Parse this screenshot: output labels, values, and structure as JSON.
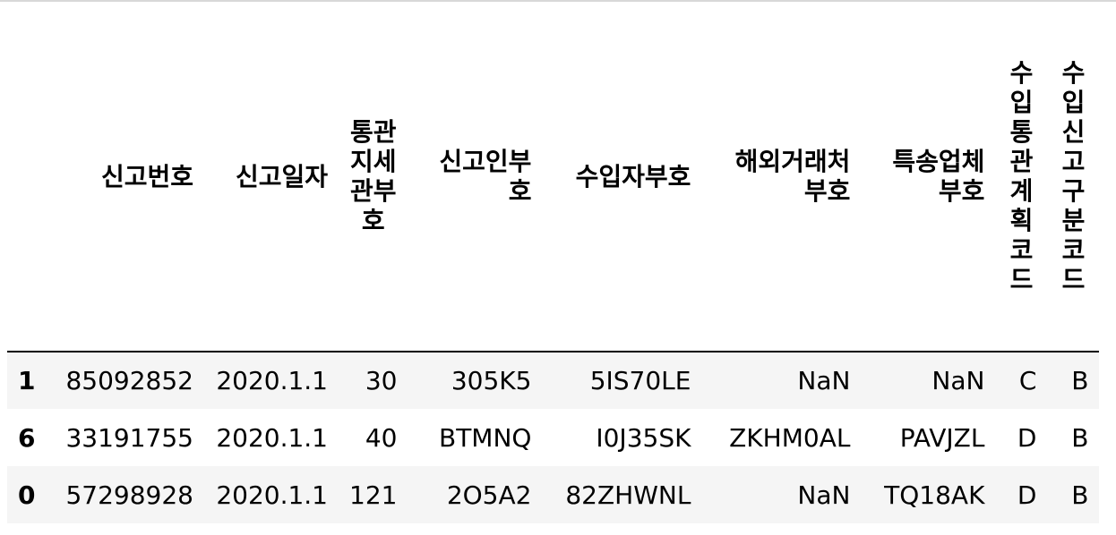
{
  "table": {
    "index_header": "",
    "columns": [
      "신고번호",
      "신고일자",
      "통관지세관부호",
      "신고인부호",
      "수입자부호",
      "해외거래처부호",
      "특송업체부호",
      "수입통관계획코드",
      "수입신고구분코드"
    ],
    "rows": [
      {
        "index": "1",
        "cells": [
          "85092852",
          "2020.1.1",
          "30",
          "305K5",
          "5IS70LE",
          "NaN",
          "NaN",
          "C",
          "B"
        ]
      },
      {
        "index": "6",
        "cells": [
          "33191755",
          "2020.1.1",
          "40",
          "BTMNQ",
          "I0J35SK",
          "ZKHM0AL",
          "PAVJZL",
          "D",
          "B"
        ]
      },
      {
        "index": "0",
        "cells": [
          "57298928",
          "2020.1.1",
          "121",
          "2O5A2",
          "82ZHWNL",
          "NaN",
          "TQ18AK",
          "D",
          "B"
        ]
      }
    ]
  }
}
